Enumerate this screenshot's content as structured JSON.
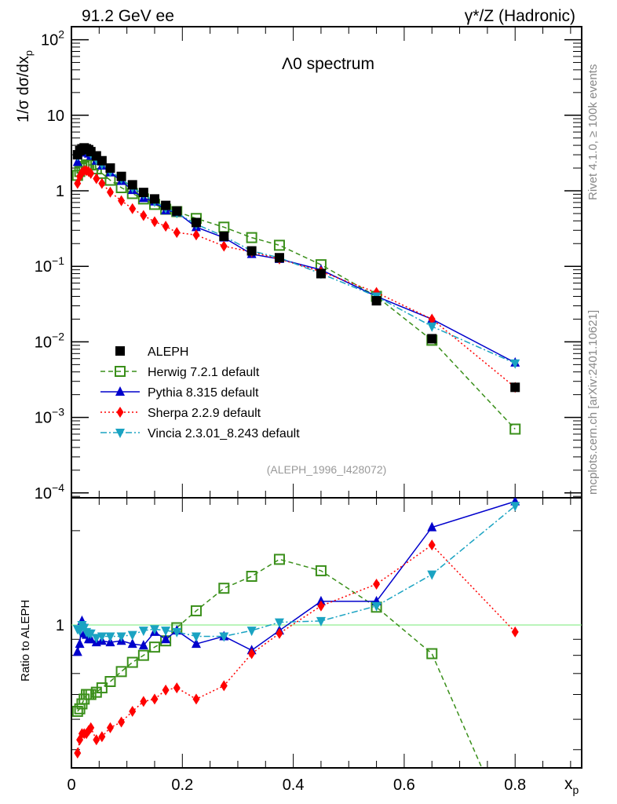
{
  "header": {
    "left": "91.2 GeV ee",
    "right": "γ*/Z (Hadronic)"
  },
  "side_text": {
    "rivet": "Rivet 4.1.0, ≥ 100k events",
    "mcplots": "mcplots.cern.ch [arXiv:2401.10621]"
  },
  "colors": {
    "aleph": "#000000",
    "herwig": "#3a8f1a",
    "pythia": "#0000cc",
    "sherpa": "#ff0000",
    "vincia": "#1aa3c2",
    "unity_line": "#90ee90"
  },
  "chart_data": [
    {
      "type": "scatter",
      "panel": "main",
      "title": "Λ0 spectrum",
      "xlabel": "x_p",
      "ylabel": "1/σ dσ/dx_p",
      "yscale": "log",
      "xlim": [
        0,
        0.92
      ],
      "ylim": [
        9e-05,
        140
      ],
      "y_ticks": [
        "10^2",
        "10",
        "1",
        "10^-1",
        "10^-2",
        "10^-3",
        "10^-4"
      ],
      "x_ticks": [
        "0",
        "0.2",
        "0.4",
        "0.6",
        "0.8"
      ],
      "legend_position": "bottom-left",
      "annotation": "(ALEPH_1996_I428072)",
      "x": [
        0.011,
        0.015,
        0.019,
        0.023,
        0.027,
        0.031,
        0.035,
        0.045,
        0.055,
        0.07,
        0.09,
        0.11,
        0.13,
        0.15,
        0.17,
        0.19,
        0.225,
        0.275,
        0.325,
        0.375,
        0.45,
        0.55,
        0.65,
        0.8
      ],
      "series": [
        {
          "name": "ALEPH",
          "style": "data",
          "values": [
            3.0,
            3.4,
            3.6,
            3.7,
            3.6,
            3.5,
            3.3,
            2.9,
            2.5,
            2.0,
            1.55,
            1.2,
            0.95,
            0.78,
            0.64,
            0.54,
            0.38,
            0.25,
            0.16,
            0.13,
            0.08,
            0.035,
            0.011,
            0.0025
          ]
        },
        {
          "name": "Herwig 7.2.1 default",
          "style": "dashed",
          "values": [
            1.6,
            1.8,
            2.0,
            2.1,
            2.2,
            2.2,
            2.2,
            1.95,
            1.7,
            1.38,
            1.1,
            0.92,
            0.78,
            0.66,
            0.57,
            0.53,
            0.43,
            0.33,
            0.24,
            0.19,
            0.105,
            0.04,
            0.0105,
            0.0007
          ]
        },
        {
          "name": "Pythia 8.315 default",
          "style": "solid",
          "values": [
            2.4,
            3.2,
            3.6,
            3.4,
            3.2,
            3.1,
            2.9,
            2.5,
            2.15,
            1.75,
            1.35,
            1.02,
            0.8,
            0.72,
            0.55,
            0.52,
            0.33,
            0.24,
            0.145,
            0.125,
            0.09,
            0.04,
            0.02,
            0.0053
          ]
        },
        {
          "name": "Sherpa 2.2.9 default",
          "style": "dotted",
          "values": [
            1.25,
            1.55,
            1.75,
            1.85,
            1.85,
            1.8,
            1.7,
            1.45,
            1.25,
            0.96,
            0.74,
            0.58,
            0.47,
            0.39,
            0.34,
            0.28,
            0.26,
            0.185,
            0.155,
            0.125,
            0.085,
            0.045,
            0.02,
            0.0025
          ]
        },
        {
          "name": "Vincia 2.3.01_8.243 default",
          "style": "dashdot",
          "values": [
            2.9,
            3.3,
            3.6,
            3.6,
            3.4,
            3.3,
            3.1,
            2.6,
            2.25,
            1.8,
            1.45,
            1.1,
            0.9,
            0.72,
            0.59,
            0.51,
            0.36,
            0.25,
            0.16,
            0.13,
            0.08,
            0.04,
            0.016,
            0.0052
          ]
        }
      ]
    },
    {
      "type": "line",
      "panel": "ratio",
      "ylabel": "Ratio to ALEPH",
      "xlabel": "x_p",
      "yscale": "log",
      "xlim": [
        0,
        0.92
      ],
      "ylim": [
        0.35,
        2.55
      ],
      "y_ticks": [
        "1"
      ],
      "x_ticks": [
        "0",
        "0.2",
        "0.4",
        "0.6",
        "0.8"
      ],
      "x": [
        0.011,
        0.015,
        0.019,
        0.023,
        0.027,
        0.031,
        0.035,
        0.045,
        0.055,
        0.07,
        0.09,
        0.11,
        0.13,
        0.15,
        0.17,
        0.19,
        0.225,
        0.275,
        0.325,
        0.375,
        0.45,
        0.55,
        0.65,
        0.8
      ],
      "series": [
        {
          "name": "Herwig 7.2.1 default",
          "values": [
            0.53,
            0.54,
            0.56,
            0.58,
            0.6,
            0.6,
            0.6,
            0.61,
            0.63,
            0.66,
            0.71,
            0.76,
            0.8,
            0.85,
            0.89,
            0.98,
            1.11,
            1.31,
            1.43,
            1.62,
            1.49,
            1.14,
            0.81,
            0.2
          ]
        },
        {
          "name": "Pythia 8.315 default",
          "values": [
            0.82,
            0.87,
            1.03,
            0.94,
            0.93,
            0.9,
            0.9,
            0.88,
            0.89,
            0.88,
            0.89,
            0.87,
            0.86,
            0.95,
            0.9,
            0.96,
            0.87,
            0.92,
            0.83,
            0.96,
            1.19,
            1.19,
            2.05,
            2.48
          ]
        },
        {
          "name": "Sherpa 2.2.9 default",
          "values": [
            0.39,
            0.43,
            0.45,
            0.45,
            0.45,
            0.46,
            0.47,
            0.43,
            0.44,
            0.47,
            0.49,
            0.53,
            0.57,
            0.58,
            0.62,
            0.63,
            0.58,
            0.64,
            0.81,
            0.94,
            1.15,
            1.35,
            1.8,
            0.95
          ]
        },
        {
          "name": "Vincia 2.3.01_8.243 default",
          "values": [
            0.97,
            0.96,
            1.0,
            0.98,
            0.95,
            0.94,
            0.94,
            0.91,
            0.92,
            0.92,
            0.92,
            0.93,
            0.96,
            0.97,
            0.96,
            0.95,
            0.92,
            0.92,
            0.96,
            1.02,
            1.03,
            1.15,
            1.45,
            2.4
          ]
        }
      ]
    }
  ]
}
